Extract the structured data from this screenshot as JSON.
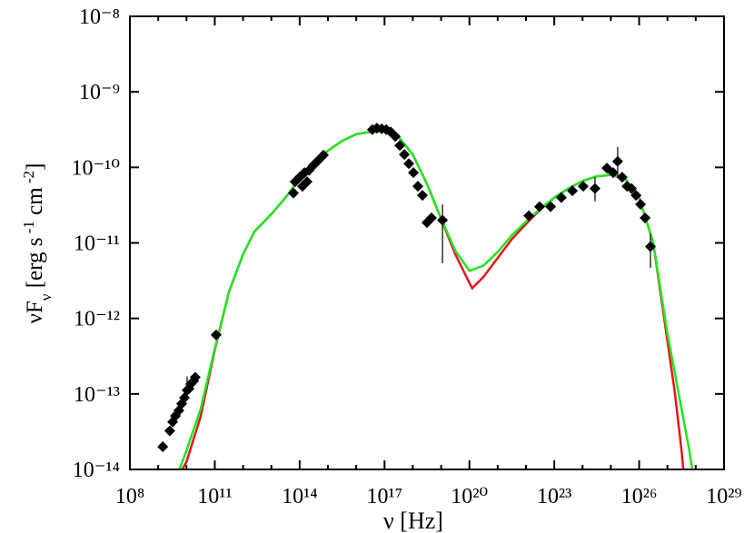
{
  "chart_data": {
    "type": "sed",
    "xlabel": "ν [Hz]",
    "ylabel": [
      {
        "text": "νF"
      },
      {
        "text": "ν",
        "shift": "sub"
      },
      {
        "text": " [erg s"
      },
      {
        "text": " -1",
        "shift": "super"
      },
      {
        "text": " cm"
      },
      {
        "text": " -2",
        "shift": "super"
      },
      {
        "text": "]"
      }
    ],
    "log_x": true,
    "log_y": true,
    "xlim": [
      100000000.0,
      1e+29
    ],
    "ylim": [
      1e-14,
      1e-08
    ],
    "xticks": [
      {
        "value": 100000000.0,
        "label": "10⁸"
      },
      {
        "value": 100000000000.0,
        "label": "10¹¹"
      },
      {
        "value": 100000000000000.0,
        "label": "10¹⁴"
      },
      {
        "value": 1e+17,
        "label": "10¹⁷"
      },
      {
        "value": 1e+20,
        "label": "10²⁰"
      },
      {
        "value": 1e+23,
        "label": "10²³"
      },
      {
        "value": 1e+26,
        "label": "10²⁶"
      },
      {
        "value": 1e+29,
        "label": "10²⁹"
      }
    ],
    "xticks_minor": [
      1000000000.0,
      10000000000.0,
      1000000000000.0,
      10000000000000.0,
      1000000000000000.0,
      1e+16,
      1e+18,
      1e+19,
      1e+21,
      1e+22,
      1e+24,
      1e+25,
      1e+27,
      1e+28
    ],
    "yticks": [
      {
        "value": 1e-14,
        "label": "10⁻¹⁴"
      },
      {
        "value": 1e-13,
        "label": "10⁻¹³"
      },
      {
        "value": 1e-12,
        "label": "10⁻¹²"
      },
      {
        "value": 1e-11,
        "label": "10⁻¹¹"
      },
      {
        "value": 1e-10,
        "label": "10⁻¹⁰"
      },
      {
        "value": 1e-09,
        "label": "10⁻⁹"
      },
      {
        "value": 1e-08,
        "label": "10⁻⁸"
      }
    ],
    "points": {
      "color": "#000000",
      "x": [
        1450000000.0,
        2570000000.0,
        3240000000.0,
        4070000000.0,
        5370000000.0,
        6760000000.0,
        8510000000.0,
        10500000000.0,
        12300000000.0,
        14100000000.0,
        17800000000.0,
        20400000000.0,
        112000000000.0,
        60300000000000.0,
        69200000000000.0,
        100000000000000.0,
        126000000000000.0,
        148000000000000.0,
        182000000000000.0,
        214000000000000.0,
        309000000000000.0,
        447000000000000.0,
        692000000000000.0,
        3.72e+16,
        5.37e+16,
        7.94e+16,
        1.15e+17,
        1.66e+17,
        2.4e+17,
        3.47e+17,
        5.01e+17,
        7.24e+17,
        1.05e+18,
        1.51e+18,
        2.19e+18,
        3.16e+18,
        4.57e+18,
        1.12e+19,
        1.26e+22,
        3.02e+22,
        7.41e+22,
        1.78e+23,
        4.37e+23,
        1.05e+24,
        2.75e+24,
        7.24e+24,
        1.2e+25,
        1.74e+25,
        2.51e+25,
        3.72e+25,
        5.37e+25,
        7.76e+25,
        1.12e+26,
        1.62e+26,
        2.51e+26
      ],
      "values": [
        2e-14,
        3.24e-14,
        4.27e-14,
        5.13e-14,
        6.03e-14,
        7.41e-14,
        8.91e-14,
        1.12e-13,
        1.17e-13,
        1.35e-13,
        1.48e-13,
        1.66e-13,
        6.03e-13,
        4.57e-11,
        6.46e-11,
        7.41e-11,
        5.62e-11,
        8.51e-11,
        6.46e-11,
        9.12e-11,
        1.07e-10,
        1.23e-10,
        1.45e-10,
        3.16e-10,
        3.31e-10,
        3.24e-10,
        3.16e-10,
        2.95e-10,
        2.57e-10,
        1.95e-10,
        1.48e-10,
        1.12e-10,
        8.51e-11,
        5.62e-11,
        4.27e-11,
        1.86e-11,
        2.14e-11,
        2e-11,
        2.29e-11,
        3.02e-11,
        3.02e-11,
        3.98e-11,
        4.9e-11,
        5.62e-11,
        5.25e-11,
        9.77e-11,
        8.51e-11,
        1.2e-10,
        7.41e-11,
        5.62e-11,
        5.25e-11,
        4.27e-11,
        3.24e-11,
        2.14e-11,
        8.91e-12
      ],
      "y_low": [
        null,
        null,
        null,
        null,
        null,
        null,
        null,
        8.5e-14,
        null,
        null,
        null,
        null,
        null,
        null,
        null,
        null,
        null,
        null,
        null,
        null,
        null,
        null,
        null,
        null,
        null,
        null,
        null,
        null,
        null,
        null,
        null,
        null,
        null,
        null,
        null,
        null,
        null,
        5.37e-12,
        null,
        null,
        null,
        null,
        null,
        null,
        3.55e-11,
        null,
        null,
        7.41e-11,
        null,
        null,
        null,
        null,
        null,
        null,
        4.68e-12
      ],
      "y_high": [
        null,
        null,
        null,
        null,
        null,
        null,
        null,
        1.7e-13,
        null,
        null,
        null,
        null,
        null,
        null,
        null,
        null,
        null,
        null,
        null,
        null,
        null,
        null,
        null,
        null,
        null,
        null,
        null,
        null,
        null,
        null,
        null,
        null,
        null,
        null,
        null,
        null,
        null,
        3.24e-11,
        null,
        null,
        null,
        null,
        null,
        null,
        7.41e-11,
        null,
        null,
        1.86e-10,
        null,
        null,
        null,
        null,
        null,
        null,
        1.32e-11
      ]
    },
    "series": [
      {
        "color": "#e8141a",
        "x": [
          7080000000.0,
          10000000000.0,
          31600000000.0,
          100000000000.0,
          316000000000.0,
          1000000000000.0,
          2510000000000.0,
          10000000000000.0,
          31600000000000.0,
          100000000000000.0,
          316000000000000.0,
          1000000000000000.0,
          3160000000000000.0,
          1e+16,
          3.16e+16,
          1e+17,
          3.16e+17,
          1e+18,
          3.16e+18,
          1e+19,
          3.16e+19,
          1e+20,
          1.26e+20,
          3.16e+20,
          1e+21,
          3.16e+21,
          1e+22,
          3.16e+22,
          1e+23,
          3.16e+23,
          1e+24,
          3.16e+24,
          1e+25,
          3.16e+25,
          1e+26,
          3.16e+26,
          1e+27,
          1.78e+27,
          3.16e+27,
          3.63e+27
        ],
        "values": [
          1e-14,
          1.26e-14,
          5.01e-14,
          3.8e-13,
          2.24e-12,
          7.08e-12,
          1.41e-11,
          2.4e-11,
          3.98e-11,
          7.08e-11,
          1.12e-10,
          1.66e-10,
          2.24e-10,
          2.75e-10,
          2.95e-10,
          3.02e-10,
          2.51e-10,
          1.48e-10,
          6.03e-11,
          2.09e-11,
          7.08e-12,
          2.95e-12,
          2.51e-12,
          3.55e-12,
          6.31e-12,
          1.12e-11,
          1.78e-11,
          2.75e-11,
          3.98e-11,
          5.25e-11,
          6.61e-11,
          7.59e-11,
          7.94e-11,
          7.08e-11,
          3.98e-11,
          1e-11,
          5.01e-13,
          1.12e-13,
          1.78e-14,
          1e-14
        ]
      },
      {
        "color": "#1ee81e",
        "x": [
          5620000000.0,
          10000000000.0,
          31600000000.0,
          100000000000.0,
          316000000000.0,
          1000000000000.0,
          2510000000000.0,
          10000000000000.0,
          31600000000000.0,
          100000000000000.0,
          316000000000000.0,
          1000000000000000.0,
          3160000000000000.0,
          1e+16,
          3.16e+16,
          1e+17,
          3.16e+17,
          1e+18,
          3.16e+18,
          1e+19,
          3.16e+19,
          1e+20,
          3.16e+20,
          1e+21,
          3.16e+21,
          1e+22,
          3.16e+22,
          1e+23,
          3.16e+23,
          1e+24,
          3.16e+24,
          1e+25,
          3.16e+25,
          1e+26,
          3.16e+26,
          1e+27,
          1.78e+27,
          3.16e+27,
          5.62e+27,
          7.59e+27
        ],
        "values": [
          1e-14,
          1.78e-14,
          6.31e-14,
          3.98e-13,
          2.24e-12,
          7.08e-12,
          1.41e-11,
          2.4e-11,
          3.98e-11,
          7.08e-11,
          1.12e-10,
          1.66e-10,
          2.24e-10,
          2.75e-10,
          2.95e-10,
          3.02e-10,
          2.51e-10,
          1.48e-10,
          6.03e-11,
          2.09e-11,
          7.94e-12,
          4.27e-12,
          5.01e-12,
          7.59e-12,
          1.26e-11,
          1.91e-11,
          2.82e-11,
          3.98e-11,
          5.25e-11,
          6.61e-11,
          7.59e-11,
          7.94e-11,
          7.08e-11,
          3.98e-11,
          1e-11,
          6.31e-13,
          2e-13,
          6.31e-14,
          2e-14,
          1e-14
        ]
      }
    ]
  }
}
